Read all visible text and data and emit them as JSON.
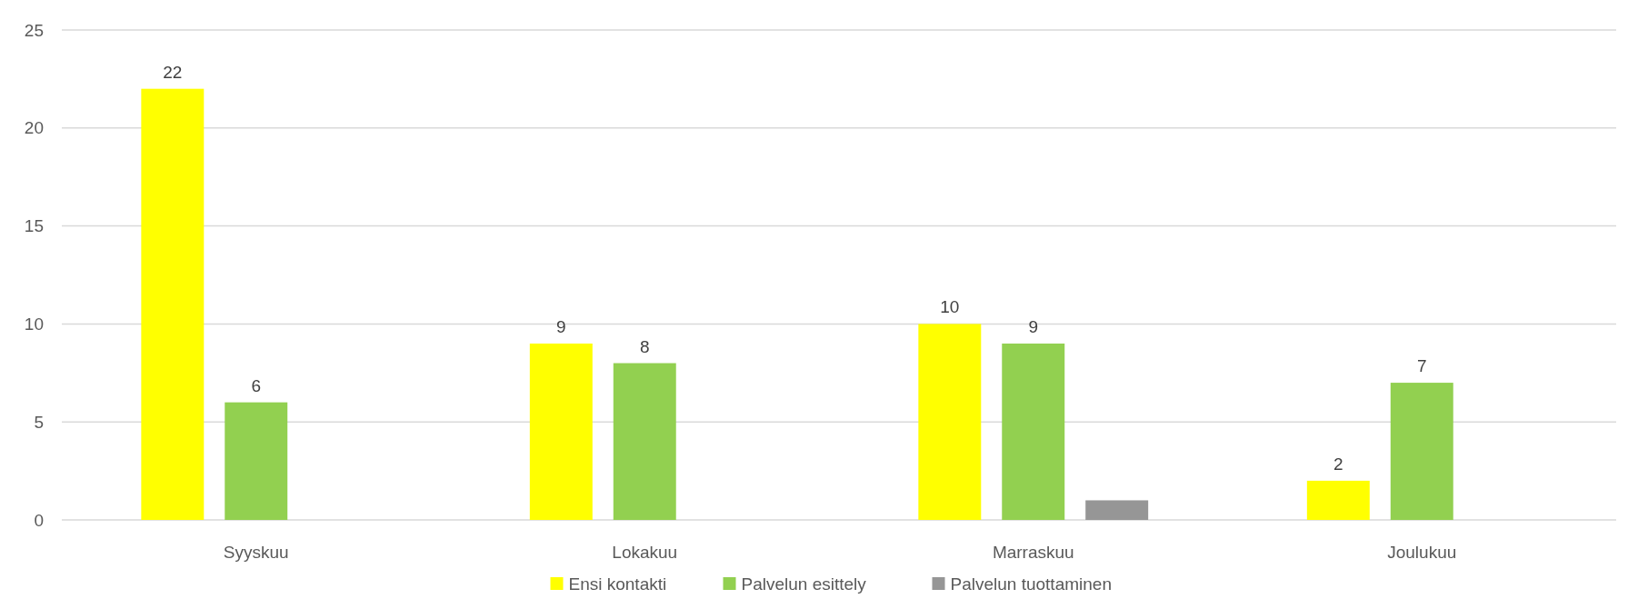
{
  "chart_data": {
    "type": "bar",
    "categories": [
      "Syyskuu",
      "Lokakuu",
      "Marraskuu",
      "Joulukuu"
    ],
    "series": [
      {
        "name": "Ensi kontakti",
        "color": "#ffff00",
        "values": [
          22,
          9,
          10,
          2
        ],
        "value_labels": [
          "22",
          "9",
          "10",
          "2"
        ]
      },
      {
        "name": "Palvelun esittely",
        "color": "#92d050",
        "values": [
          6,
          8,
          9,
          7
        ],
        "value_labels": [
          "6",
          "8",
          "9",
          "7"
        ]
      },
      {
        "name": "Palvelun tuottaminen",
        "color": "#969696",
        "values": [
          null,
          null,
          1,
          null
        ],
        "value_labels": [
          null,
          null,
          null,
          null
        ]
      }
    ],
    "ylim": [
      0,
      25
    ],
    "yticks": [
      0,
      5,
      10,
      15,
      20,
      25
    ],
    "grid": "y",
    "legend": "bottom"
  }
}
